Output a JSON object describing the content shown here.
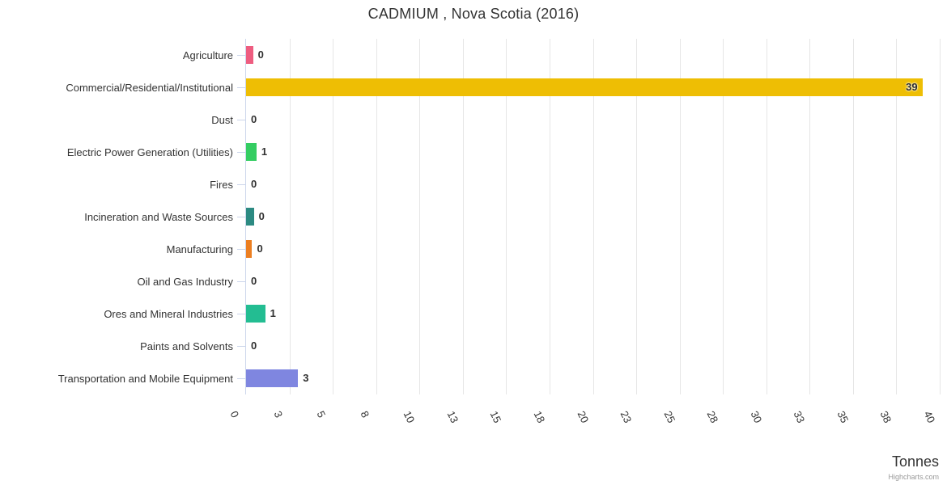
{
  "header": {
    "title": "CADMIUM , Nova Scotia (2016)"
  },
  "chart_data": {
    "type": "bar",
    "orientation": "horizontal",
    "title": "CADMIUM , Nova Scotia (2016)",
    "categories": [
      "Agriculture",
      "Commercial/Residential/Institutional",
      "Dust",
      "Electric Power Generation (Utilities)",
      "Fires",
      "Incineration and Waste Sources",
      "Manufacturing",
      "Oil and Gas Industry",
      "Ores and Mineral Industries",
      "Paints and Solvents",
      "Transportation and Mobile Equipment"
    ],
    "values": [
      0,
      39,
      0,
      1,
      0,
      0,
      0,
      0,
      1,
      0,
      3
    ],
    "data_labels": [
      "0",
      "39",
      "0",
      "1",
      "0",
      "0",
      "0",
      "0",
      "1",
      "0",
      "3"
    ],
    "approx_bar_tonnes": [
      0.4,
      39,
      0,
      0.6,
      0,
      0.45,
      0.35,
      0,
      1.1,
      0,
      3
    ],
    "bar_colors": [
      "#ee5d80",
      "#eebe04",
      null,
      "#34cd62",
      null,
      "#2c8a82",
      "#ec7f21",
      null,
      "#23bd92",
      null,
      "#7f86e0"
    ],
    "xlabel": "Tonnes",
    "x_tick_labels": [
      "0",
      "3",
      "5",
      "8",
      "10",
      "13",
      "15",
      "18",
      "20",
      "23",
      "25",
      "28",
      "30",
      "33",
      "35",
      "38",
      "40"
    ],
    "xlim": [
      0,
      40
    ],
    "grid": "vertical",
    "legend": "none"
  },
  "credits": {
    "label": "Highcharts.com"
  },
  "style": {
    "background": "#ffffff",
    "gridline_color": "#e6e6e6",
    "axis_line_color": "#ccd6eb",
    "title_color": "#333333",
    "label_color": "#333333",
    "value_label_color": "#2f2f2f",
    "credits_color": "#999999"
  }
}
